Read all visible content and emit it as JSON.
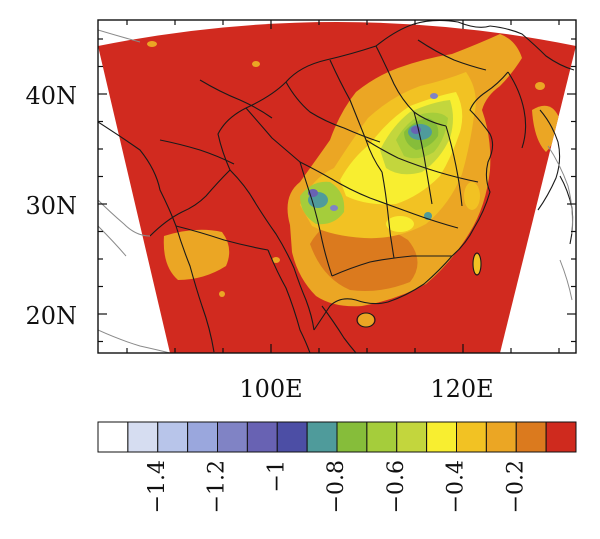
{
  "map": {
    "lat_ticks": [
      "40N",
      "30N",
      "20N"
    ],
    "lon_ticks": [
      "100E",
      "120E"
    ],
    "background_color": "#d12a1f"
  },
  "colorbar": {
    "colors": [
      "#ffffff",
      "#d6ddf1",
      "#b8c5ea",
      "#9aa7dd",
      "#8083c5",
      "#6862b3",
      "#4c4ea5",
      "#4f9b9b",
      "#86bd3a",
      "#a5cd3b",
      "#c3d63d",
      "#f8ee30",
      "#f2c223",
      "#eba624",
      "#db7a1e",
      "#cf2a1e"
    ],
    "labels": [
      "−1.4",
      "−1.2",
      "−1",
      "−0.8",
      "−0.6",
      "−0.4",
      "−0.2"
    ]
  }
}
